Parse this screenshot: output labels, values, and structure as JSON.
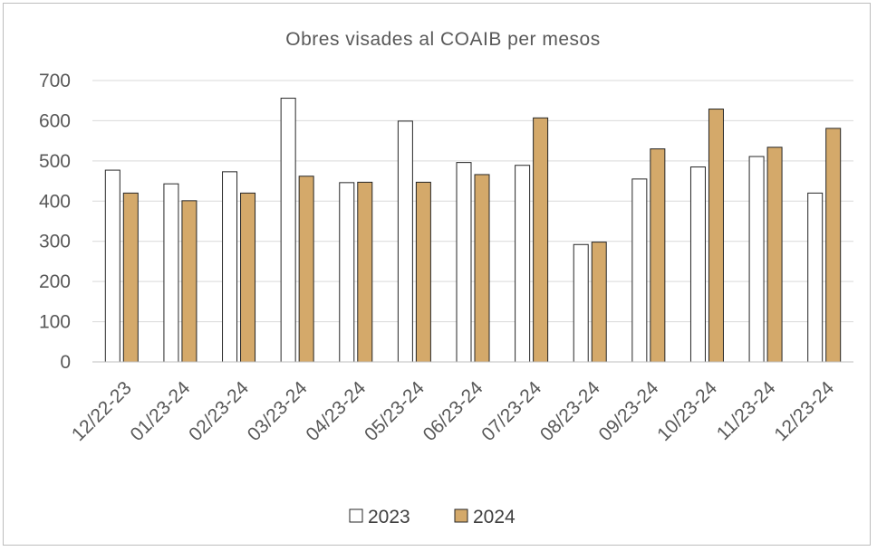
{
  "chart_data": {
    "type": "bar",
    "title": "Obres visades al COAIB per mesos",
    "xlabel": "",
    "ylabel": "",
    "ylim": [
      0,
      700
    ],
    "yticks": [
      0,
      100,
      200,
      300,
      400,
      500,
      600,
      700
    ],
    "grid": true,
    "legend_position": "bottom",
    "categories": [
      "12/22-23",
      "01/23-24",
      "02/23-24",
      "03/23-24",
      "04/23-24",
      "05/23-24",
      "06/23-24",
      "07/23-24",
      "08/23-24",
      "09/23-24",
      "10/23-24",
      "11/23-24",
      "12/23-24"
    ],
    "series": [
      {
        "name": "2023",
        "color": "#ffffff",
        "stroke": "#262626",
        "values": [
          477,
          443,
          473,
          656,
          446,
          599,
          496,
          489,
          292,
          455,
          485,
          511,
          420
        ]
      },
      {
        "name": "2024",
        "color": "#d4a96a",
        "stroke": "#262626",
        "values": [
          420,
          401,
          420,
          462,
          447,
          447,
          466,
          607,
          298,
          530,
          629,
          534,
          581
        ]
      }
    ]
  }
}
